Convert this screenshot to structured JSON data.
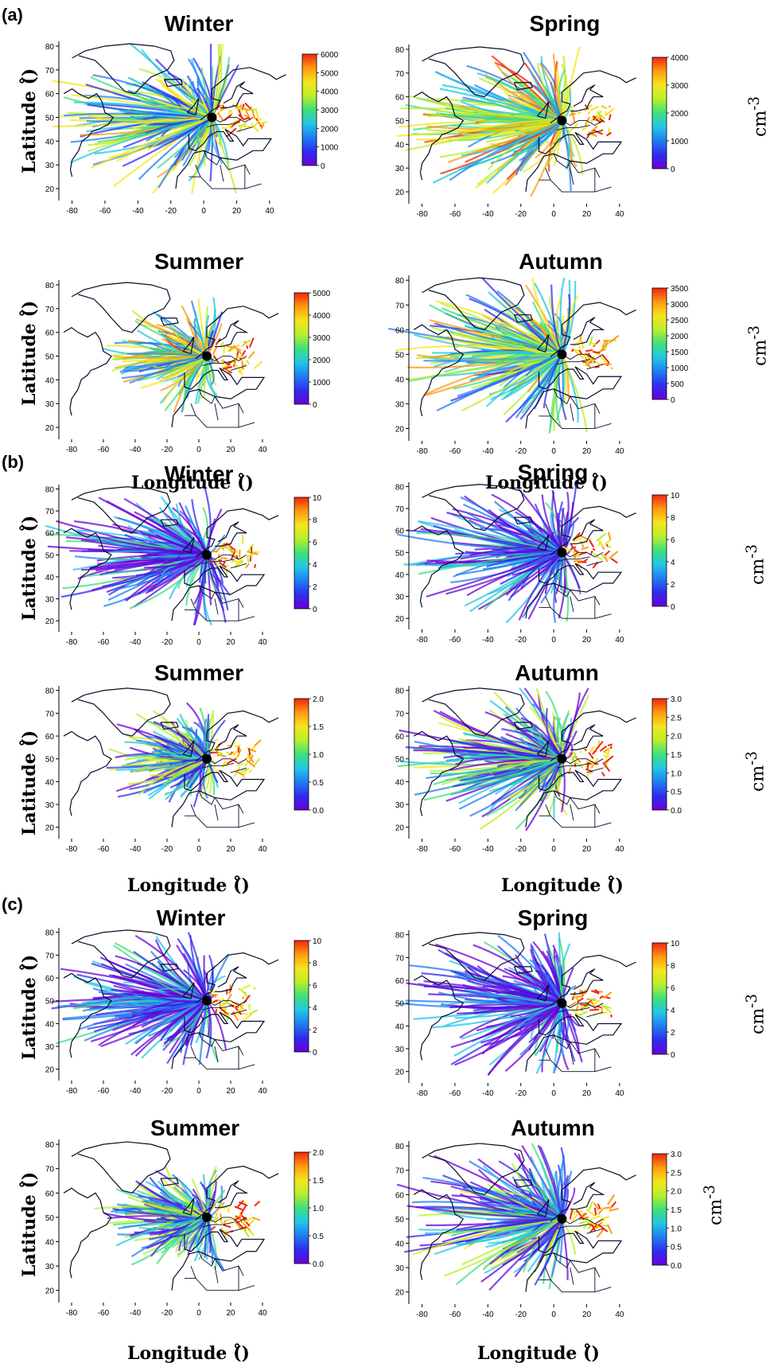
{
  "panel_labels": [
    "(a)",
    "(b)",
    "(c)"
  ],
  "axis": {
    "latitude_label": "Latitude (̊)",
    "longitude_label": "Longitude (̊)",
    "unit_label": "cm-3",
    "x_ticks": [
      "-80",
      "-60",
      "-40",
      "-20",
      "0",
      "20",
      "40"
    ],
    "y_ticks": [
      "20",
      "30",
      "40",
      "50",
      "60",
      "70",
      "80"
    ]
  },
  "colors": {
    "scale": [
      "#6a00d8",
      "#2f2cf0",
      "#1f7cf2",
      "#22c6e6",
      "#3ee07a",
      "#b8ef2a",
      "#f5e51c",
      "#ff9a10",
      "#f2250d"
    ],
    "map_outline": "#0a0a2a",
    "station": "#000000"
  },
  "panels": [
    {
      "label": "(a)",
      "maps": [
        {
          "season": "Winter",
          "colorbar_ticks": [
            "6000",
            "5000",
            "4000",
            "3000",
            "2000",
            "1000",
            "0"
          ],
          "show_unit": false
        },
        {
          "season": "Spring",
          "colorbar_ticks": [
            "4000",
            "3000",
            "2000",
            "1000",
            "0"
          ],
          "show_unit": true
        },
        {
          "season": "Summer",
          "colorbar_ticks": [
            "5000",
            "4000",
            "3000",
            "2000",
            "1000",
            "0"
          ],
          "show_unit": false
        },
        {
          "season": "Autumn",
          "colorbar_ticks": [
            "3500",
            "3000",
            "2500",
            "2000",
            "1500",
            "1000",
            "500",
            "0"
          ],
          "show_unit": true
        }
      ]
    },
    {
      "label": "(b)",
      "maps": [
        {
          "season": "Winter",
          "colorbar_ticks": [
            "10",
            "8",
            "6",
            "4",
            "2",
            "0"
          ],
          "show_unit": false
        },
        {
          "season": "Spring",
          "colorbar_ticks": [
            "10",
            "8",
            "6",
            "4",
            "2",
            "0"
          ],
          "show_unit": true
        },
        {
          "season": "Summer",
          "colorbar_ticks": [
            "2.0",
            "1.5",
            "1.0",
            "0.5",
            "0.0"
          ],
          "show_unit": false
        },
        {
          "season": "Autumn",
          "colorbar_ticks": [
            "3.0",
            "2.5",
            "2.0",
            "1.5",
            "1.0",
            "0.5",
            "0.0"
          ],
          "show_unit": true
        }
      ]
    },
    {
      "label": "(c)",
      "maps": [
        {
          "season": "Winter",
          "colorbar_ticks": [
            "10",
            "8",
            "6",
            "4",
            "2",
            "0"
          ],
          "show_unit": false
        },
        {
          "season": "Spring",
          "colorbar_ticks": [
            "10",
            "8",
            "6",
            "4",
            "2",
            "0"
          ],
          "show_unit": true
        },
        {
          "season": "Summer",
          "colorbar_ticks": [
            "2.0",
            "1.5",
            "1.0",
            "0.5",
            "0.0"
          ],
          "show_unit": false
        },
        {
          "season": "Autumn",
          "colorbar_ticks": [
            "3.0",
            "2.5",
            "2.0",
            "1.5",
            "1.0",
            "0.5",
            "0.0"
          ],
          "show_unit": true
        }
      ]
    }
  ]
}
